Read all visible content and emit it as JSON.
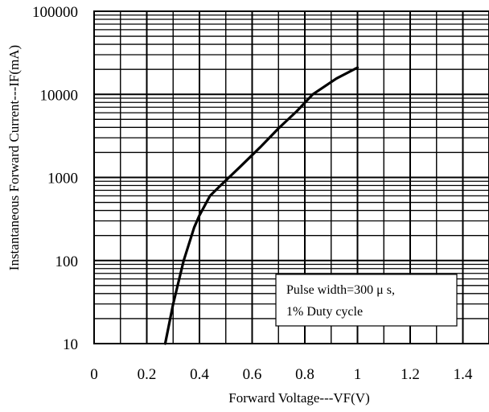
{
  "chart_data": {
    "type": "line",
    "xlabel": "Forward Voltage---VF(V)",
    "ylabel": "Instantaneous Forward Current---IF(mA)",
    "xlim": [
      0,
      1.5
    ],
    "ylim": [
      10,
      100000
    ],
    "yscale": "log",
    "grid": true,
    "x_ticks": [
      0,
      0.2,
      0.4,
      0.6,
      0.8,
      1,
      1.2,
      1.4
    ],
    "x_tick_labels": [
      "0",
      "0.2",
      "0.4",
      "0.6",
      "0.8",
      "1",
      "1.2",
      "1.4"
    ],
    "y_ticks": [
      10,
      100,
      1000,
      10000,
      100000
    ],
    "y_tick_labels": [
      "10",
      "100",
      "1000",
      "10000",
      "100000"
    ],
    "annotation": [
      "Pulse width=300 μ s,",
      "1% Duty cycle"
    ],
    "series": [
      {
        "x": [
          0.27,
          0.3,
          0.34,
          0.38,
          0.4,
          0.44,
          0.48,
          0.55,
          0.63,
          0.7,
          0.77,
          0.83,
          0.92,
          1.0
        ],
        "y": [
          10,
          30,
          100,
          250,
          350,
          600,
          800,
          1300,
          2300,
          3900,
          6300,
          10000,
          15500,
          21000
        ]
      }
    ]
  }
}
